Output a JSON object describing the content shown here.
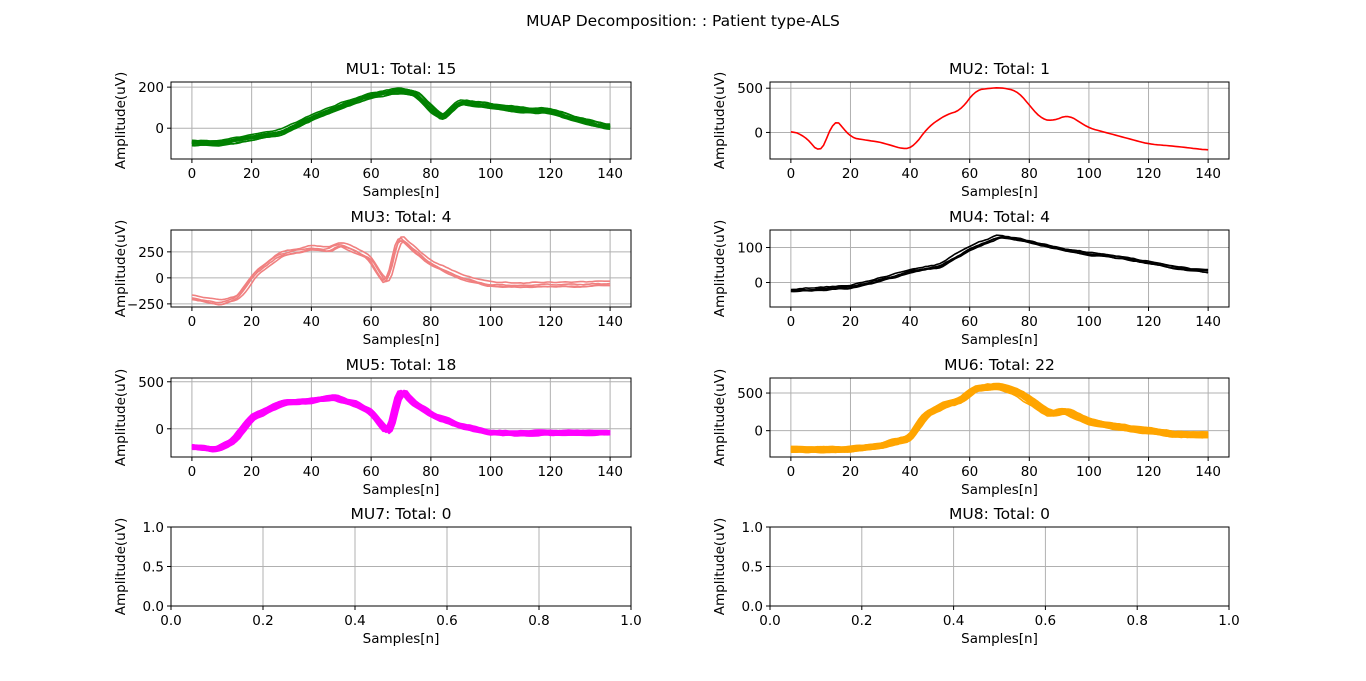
{
  "suptitle": "MUAP Decomposition: : Patient type-ALS",
  "chart_data": [
    {
      "type": "line",
      "title": "MU1: Total: 15",
      "xlabel": "Samples[n]",
      "ylabel": "Amplitude(uV)",
      "xlim": [
        -7,
        147
      ],
      "ylim": [
        -150,
        225
      ],
      "xticks": [
        0,
        20,
        40,
        60,
        80,
        100,
        120,
        140
      ],
      "xtick_labels": [
        "0",
        "20",
        "40",
        "60",
        "80",
        "100",
        "120",
        "140"
      ],
      "yticks": [
        0,
        200
      ],
      "ytick_labels": [
        "0",
        "200"
      ],
      "grid": true,
      "color": "#008000",
      "trace_count": 15,
      "template": [
        [
          0,
          -70
        ],
        [
          10,
          -70
        ],
        [
          20,
          -45
        ],
        [
          30,
          -20
        ],
        [
          40,
          50
        ],
        [
          50,
          110
        ],
        [
          60,
          160
        ],
        [
          70,
          185
        ],
        [
          75,
          170
        ],
        [
          80,
          95
        ],
        [
          84,
          50
        ],
        [
          90,
          130
        ],
        [
          100,
          110
        ],
        [
          110,
          90
        ],
        [
          120,
          85
        ],
        [
          130,
          40
        ],
        [
          140,
          5
        ]
      ]
    },
    {
      "type": "line",
      "title": "MU2: Total: 1",
      "xlabel": "Samples[n]",
      "ylabel": "Amplitude(uV)",
      "xlim": [
        -7,
        147
      ],
      "ylim": [
        -300,
        570
      ],
      "xticks": [
        0,
        20,
        40,
        60,
        80,
        100,
        120,
        140
      ],
      "xtick_labels": [
        "0",
        "20",
        "40",
        "60",
        "80",
        "100",
        "120",
        "140"
      ],
      "yticks": [
        0,
        500
      ],
      "ytick_labels": [
        "0",
        "500"
      ],
      "grid": true,
      "color": "#ff0000",
      "trace_count": 1,
      "template": [
        [
          0,
          20
        ],
        [
          4,
          -30
        ],
        [
          7,
          -120
        ],
        [
          10,
          -260
        ],
        [
          12,
          -100
        ],
        [
          14,
          170
        ],
        [
          16,
          120
        ],
        [
          20,
          -60
        ],
        [
          30,
          -110
        ],
        [
          38,
          -190
        ],
        [
          41,
          -170
        ],
        [
          46,
          60
        ],
        [
          52,
          200
        ],
        [
          57,
          250
        ],
        [
          62,
          480
        ],
        [
          70,
          510
        ],
        [
          76,
          470
        ],
        [
          84,
          150
        ],
        [
          88,
          130
        ],
        [
          93,
          200
        ],
        [
          100,
          50
        ],
        [
          110,
          -40
        ],
        [
          120,
          -130
        ],
        [
          130,
          -160
        ],
        [
          140,
          -200
        ]
      ]
    },
    {
      "type": "line",
      "title": "MU3: Total: 4",
      "xlabel": "Samples[n]",
      "ylabel": "Amplitude(uV)",
      "xlim": [
        -7,
        147
      ],
      "ylim": [
        -280,
        460
      ],
      "xticks": [
        0,
        20,
        40,
        60,
        80,
        100,
        120,
        140
      ],
      "xtick_labels": [
        "0",
        "20",
        "40",
        "60",
        "80",
        "100",
        "120",
        "140"
      ],
      "yticks": [
        -250,
        0,
        250
      ],
      "ytick_labels": [
        "−250",
        "0",
        "250"
      ],
      "grid": true,
      "color": "#f08080",
      "trace_count": 4,
      "template": [
        [
          0,
          -180
        ],
        [
          10,
          -240
        ],
        [
          16,
          -180
        ],
        [
          22,
          60
        ],
        [
          30,
          230
        ],
        [
          40,
          290
        ],
        [
          46,
          275
        ],
        [
          50,
          330
        ],
        [
          55,
          270
        ],
        [
          60,
          200
        ],
        [
          64,
          0
        ],
        [
          66,
          -50
        ],
        [
          68,
          200
        ],
        [
          70,
          420
        ],
        [
          72,
          350
        ],
        [
          80,
          150
        ],
        [
          90,
          20
        ],
        [
          100,
          -60
        ],
        [
          110,
          -70
        ],
        [
          120,
          -60
        ],
        [
          130,
          -60
        ],
        [
          140,
          -50
        ]
      ]
    },
    {
      "type": "line",
      "title": "MU4: Total: 4",
      "xlabel": "Samples[n]",
      "ylabel": "Amplitude(uV)",
      "xlim": [
        -7,
        147
      ],
      "ylim": [
        -70,
        150
      ],
      "xticks": [
        0,
        20,
        40,
        60,
        80,
        100,
        120,
        140
      ],
      "xtick_labels": [
        "0",
        "20",
        "40",
        "60",
        "80",
        "100",
        "120",
        "140"
      ],
      "yticks": [
        0,
        100
      ],
      "ytick_labels": [
        "0",
        "100"
      ],
      "grid": true,
      "color": "#000000",
      "trace_count": 4,
      "template": [
        [
          0,
          -20
        ],
        [
          10,
          -15
        ],
        [
          20,
          -10
        ],
        [
          30,
          10
        ],
        [
          40,
          35
        ],
        [
          50,
          50
        ],
        [
          60,
          100
        ],
        [
          70,
          135
        ],
        [
          80,
          120
        ],
        [
          90,
          100
        ],
        [
          100,
          85
        ],
        [
          110,
          75
        ],
        [
          120,
          60
        ],
        [
          130,
          45
        ],
        [
          140,
          35
        ]
      ]
    },
    {
      "type": "line",
      "title": "MU5: Total: 18",
      "xlabel": "Samples[n]",
      "ylabel": "Amplitude(uV)",
      "xlim": [
        -7,
        147
      ],
      "ylim": [
        -300,
        540
      ],
      "xticks": [
        0,
        20,
        40,
        60,
        80,
        100,
        120,
        140
      ],
      "xtick_labels": [
        "0",
        "20",
        "40",
        "60",
        "80",
        "100",
        "120",
        "140"
      ],
      "yticks": [
        0,
        500
      ],
      "ytick_labels": [
        "0",
        "500"
      ],
      "grid": true,
      "color": "#ff00ff",
      "trace_count": 18,
      "template": [
        [
          0,
          -190
        ],
        [
          8,
          -220
        ],
        [
          14,
          -120
        ],
        [
          20,
          120
        ],
        [
          30,
          280
        ],
        [
          40,
          300
        ],
        [
          47,
          340
        ],
        [
          55,
          260
        ],
        [
          60,
          180
        ],
        [
          64,
          20
        ],
        [
          66,
          -60
        ],
        [
          68,
          200
        ],
        [
          70,
          440
        ],
        [
          73,
          300
        ],
        [
          80,
          150
        ],
        [
          90,
          30
        ],
        [
          100,
          -40
        ],
        [
          110,
          -50
        ],
        [
          120,
          -40
        ],
        [
          130,
          -40
        ],
        [
          140,
          -40
        ]
      ]
    },
    {
      "type": "line",
      "title": "MU6: Total: 22",
      "xlabel": "Samples[n]",
      "ylabel": "Amplitude(uV)",
      "xlim": [
        -7,
        147
      ],
      "ylim": [
        -350,
        700
      ],
      "xticks": [
        0,
        20,
        40,
        60,
        80,
        100,
        120,
        140
      ],
      "xtick_labels": [
        "0",
        "20",
        "40",
        "60",
        "80",
        "100",
        "120",
        "140"
      ],
      "yticks": [
        0,
        500
      ],
      "ytick_labels": [
        "0",
        "500"
      ],
      "grid": true,
      "color": "#ffa500",
      "trace_count": 22,
      "template": [
        [
          0,
          -250
        ],
        [
          20,
          -250
        ],
        [
          30,
          -200
        ],
        [
          40,
          -100
        ],
        [
          45,
          200
        ],
        [
          52,
          350
        ],
        [
          57,
          400
        ],
        [
          62,
          560
        ],
        [
          70,
          590
        ],
        [
          76,
          520
        ],
        [
          85,
          270
        ],
        [
          88,
          220
        ],
        [
          92,
          270
        ],
        [
          100,
          120
        ],
        [
          110,
          50
        ],
        [
          120,
          0
        ],
        [
          130,
          -50
        ],
        [
          140,
          -60
        ]
      ]
    },
    {
      "type": "line",
      "title": "MU7: Total: 0",
      "xlabel": "Samples[n]",
      "ylabel": "Amplitude(uV)",
      "xlim": [
        0,
        1
      ],
      "ylim": [
        0,
        1
      ],
      "xticks": [
        0,
        0.2,
        0.4,
        0.6,
        0.8,
        1.0
      ],
      "xtick_labels": [
        "0.0",
        "0.2",
        "0.4",
        "0.6",
        "0.8",
        "1.0"
      ],
      "yticks": [
        0,
        0.5,
        1.0
      ],
      "ytick_labels": [
        "0.0",
        "0.5",
        "1.0"
      ],
      "grid": true,
      "color": "#000000",
      "trace_count": 0,
      "template": []
    },
    {
      "type": "line",
      "title": "MU8: Total: 0",
      "xlabel": "Samples[n]",
      "ylabel": "Amplitude(uV)",
      "xlim": [
        0,
        1
      ],
      "ylim": [
        0,
        1
      ],
      "xticks": [
        0,
        0.2,
        0.4,
        0.6,
        0.8,
        1.0
      ],
      "xtick_labels": [
        "0.0",
        "0.2",
        "0.4",
        "0.6",
        "0.8",
        "1.0"
      ],
      "yticks": [
        0,
        0.5,
        1.0
      ],
      "ytick_labels": [
        "0.0",
        "0.5",
        "1.0"
      ],
      "grid": true,
      "color": "#000000",
      "trace_count": 0,
      "template": []
    }
  ]
}
